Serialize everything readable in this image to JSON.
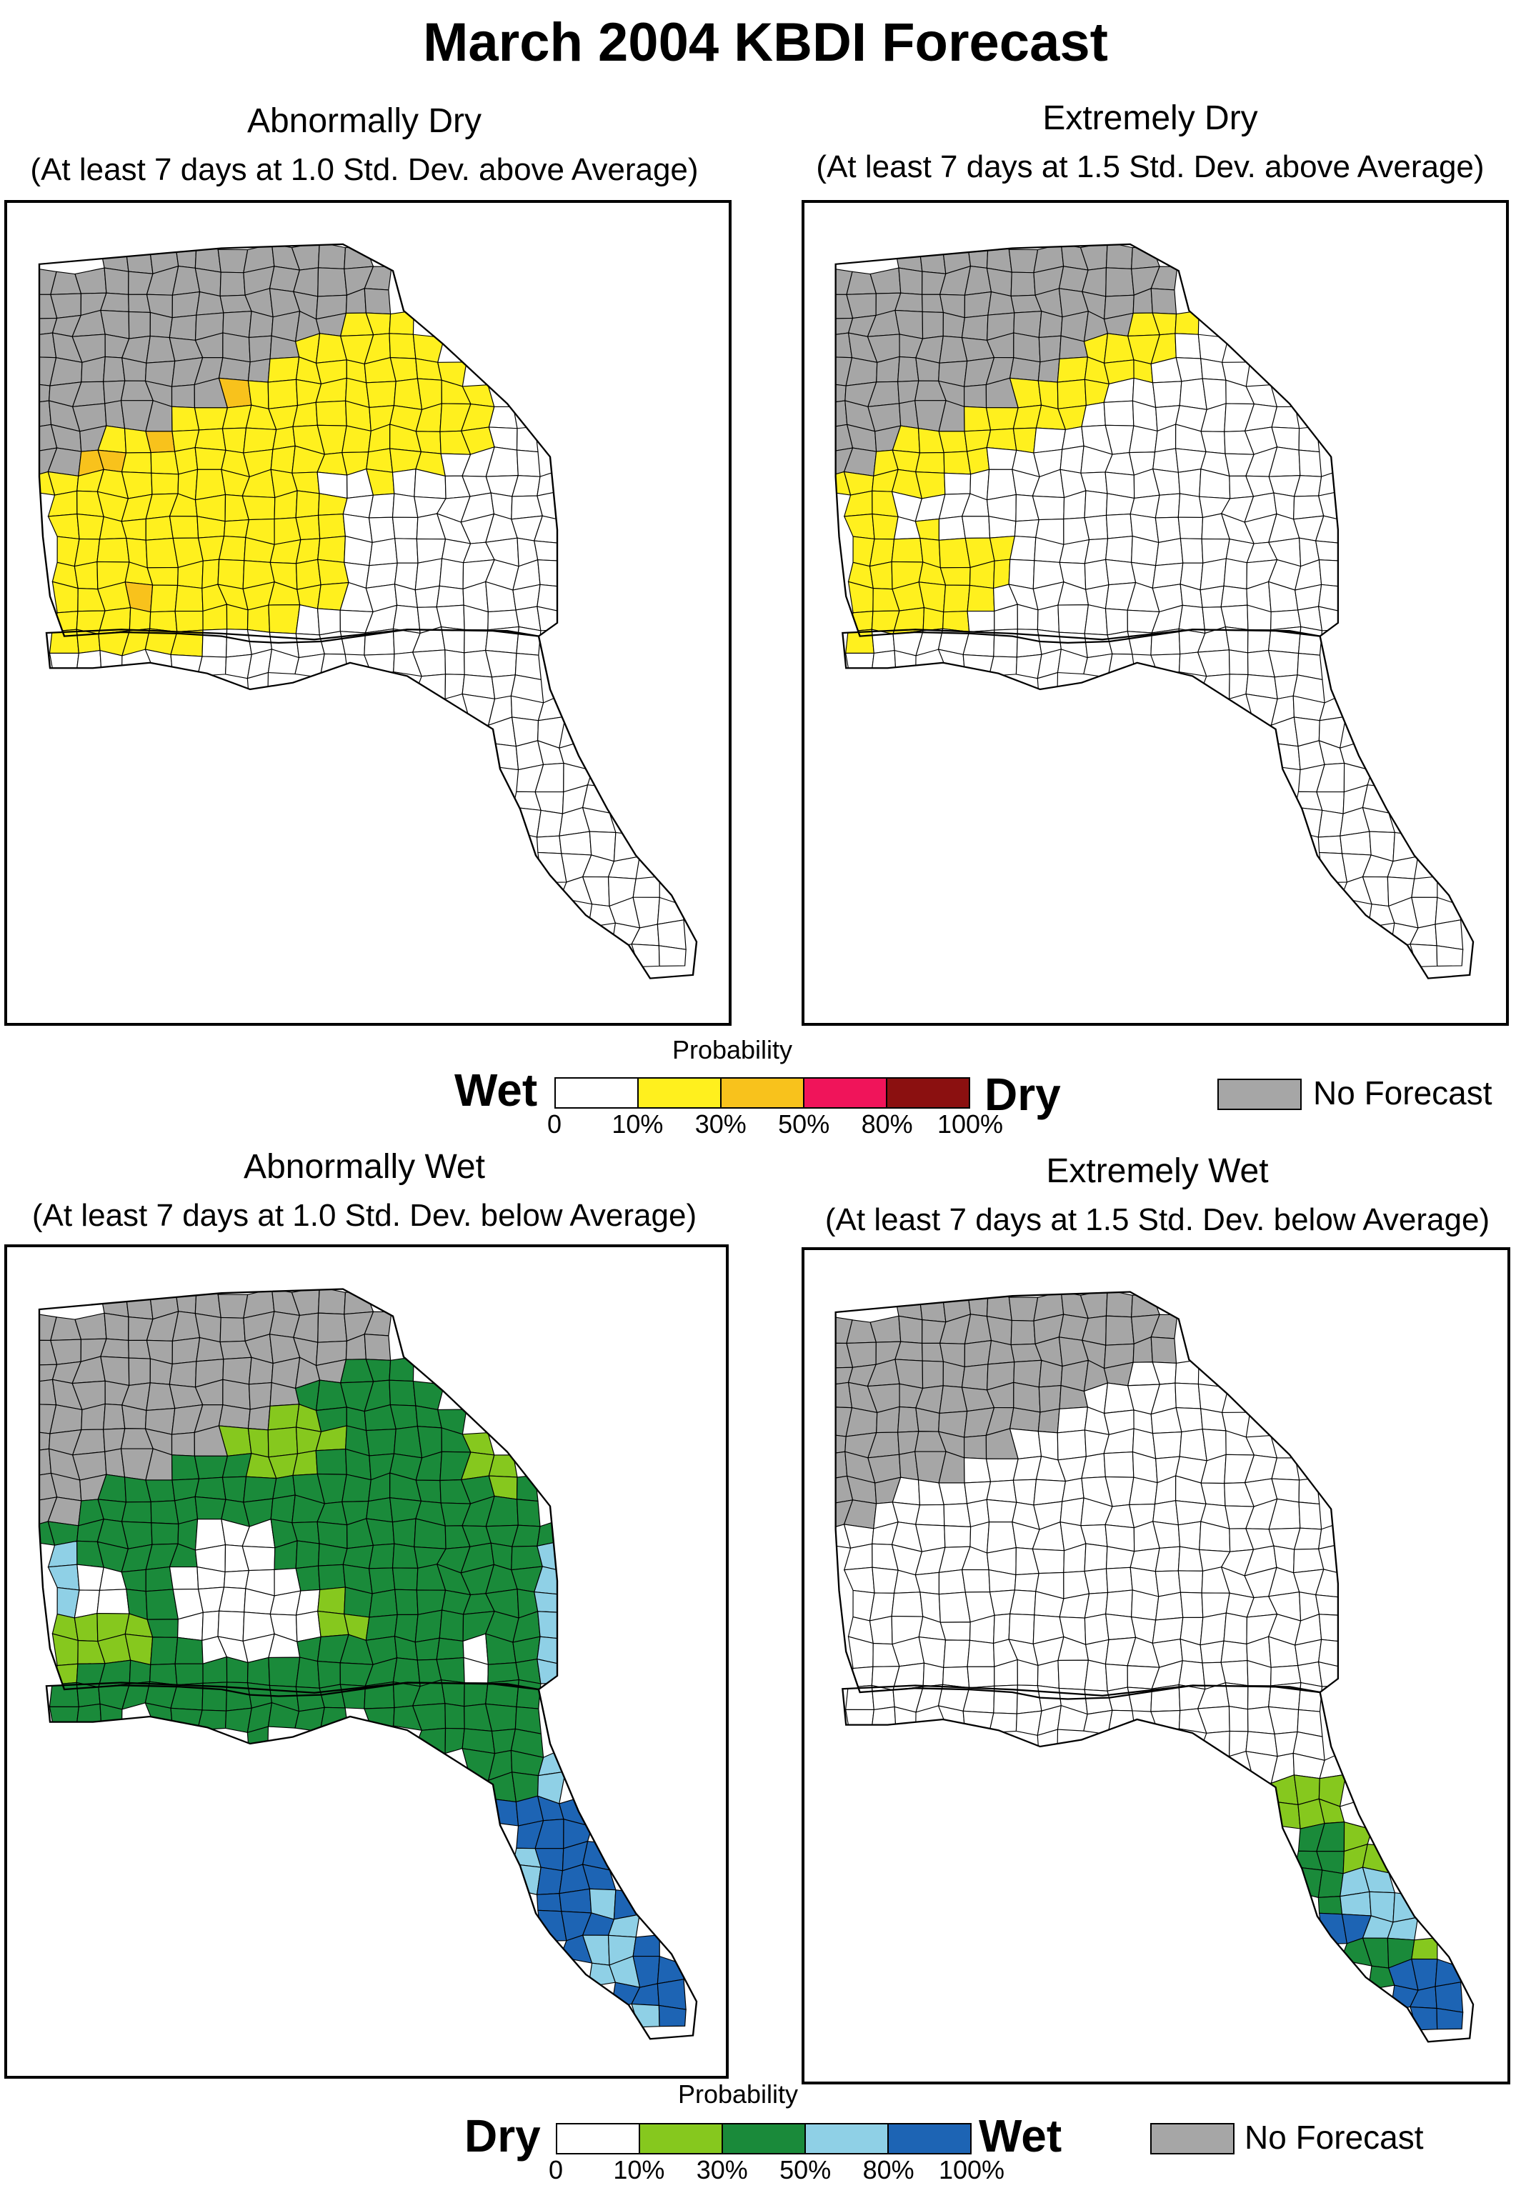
{
  "title": "March 2004 KBDI Forecast",
  "panels": [
    {
      "title": "Abnormally Dry",
      "subtitle": "(At least 7 days at 1.0 Std. Dev. above Average)"
    },
    {
      "title": "Extremely Dry",
      "subtitle": "(At least 7 days at 1.5 Std. Dev. above Average)"
    },
    {
      "title": "Abnormally Wet",
      "subtitle": "(At least 7 days at 1.0 Std. Dev. below Average)"
    },
    {
      "title": "Extremely Wet",
      "subtitle": "(At least 7 days at 1.5 Std. Dev. below Average)"
    }
  ],
  "legend_dry": {
    "caption": "Probability",
    "left_word": "Wet",
    "right_word": "Dry",
    "ticks": [
      "0",
      "10%",
      "30%",
      "50%",
      "80%",
      "100%"
    ],
    "colors": [
      "#ffffff",
      "#fff01e",
      "#f8c21c",
      "#f0145a",
      "#8b1010"
    ]
  },
  "legend_wet": {
    "caption": "Probability",
    "left_word": "Dry",
    "right_word": "Wet",
    "ticks": [
      "0",
      "10%",
      "30%",
      "50%",
      "80%",
      "100%"
    ],
    "colors": [
      "#ffffff",
      "#86c81e",
      "#1a8a3a",
      "#8fd0e6",
      "#1d64b4"
    ]
  },
  "no_forecast": {
    "label": "No Forecast",
    "color": "#a6a6a6"
  },
  "map_colors": {
    "outline": "#000000",
    "no_forecast": "#a6a6a6",
    "none": "#ffffff",
    "dry_10": "#fff01e",
    "dry_30": "#f8c21c",
    "wet_10": "#86c81e",
    "wet_30": "#1a8a3a",
    "wet_50": "#8fd0e6",
    "wet_80": "#1d64b4"
  }
}
